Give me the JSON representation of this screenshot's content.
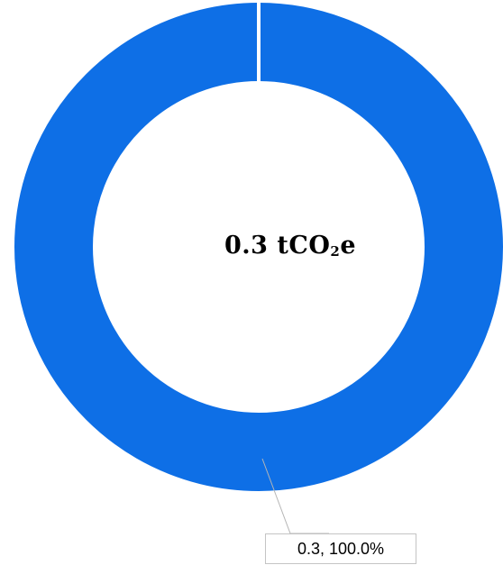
{
  "chart_data": {
    "type": "pie",
    "style": "donut",
    "slices": [
      {
        "value": 0.3,
        "percent": 100.0,
        "color": "#0e6fe6"
      }
    ],
    "center_value": "0.3",
    "center_unit_prefix": "tCO",
    "center_unit_subscript": "2",
    "center_unit_suffix": "e",
    "data_labels": [
      "0.3, 100.0%"
    ],
    "leader_line_color": "#b5b5b5",
    "slice_separator_color": "#ffffff"
  }
}
